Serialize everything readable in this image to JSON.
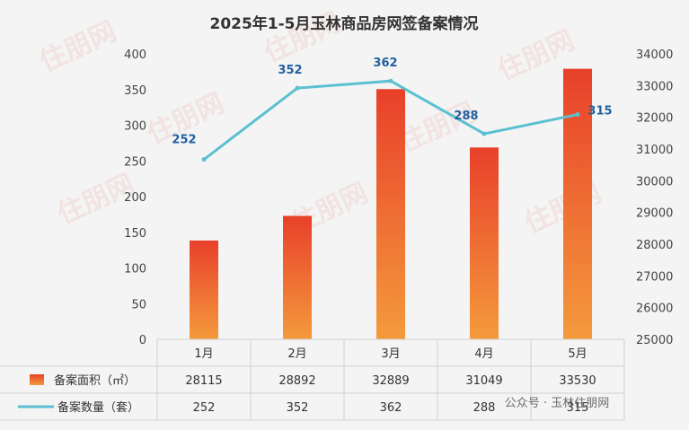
{
  "chart_data": {
    "type": "bar",
    "title": "2025年1-5月玉林商品房网签备案情况",
    "categories": [
      "1月",
      "2月",
      "3月",
      "4月",
      "5月"
    ],
    "series": [
      {
        "name": "备案面积（㎡）",
        "type": "bar",
        "axis": "right",
        "values": [
          28115,
          28892,
          32889,
          31049,
          33530
        ],
        "color": "#e8442c"
      },
      {
        "name": "备案数量（套）",
        "type": "line",
        "axis": "left",
        "values": [
          252,
          352,
          362,
          288,
          315
        ],
        "color": "#5bc0d0"
      }
    ],
    "y_left": {
      "lim": [
        0,
        400
      ],
      "ticks": [
        0,
        50,
        100,
        150,
        200,
        250,
        300,
        350,
        400
      ]
    },
    "y_right": {
      "lim": [
        25000,
        34000
      ],
      "ticks": [
        25000,
        26000,
        27000,
        28000,
        29000,
        30000,
        31000,
        32000,
        33000,
        34000
      ]
    },
    "grid": false,
    "legend": "data-table-bottom"
  },
  "watermark": {
    "text": "住朋网",
    "url_text": "www.zp365.com"
  },
  "brand_footer": "公众号 · 玉林住朋网"
}
